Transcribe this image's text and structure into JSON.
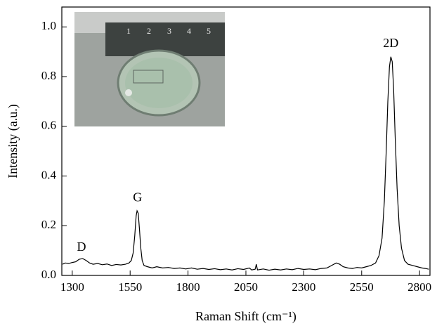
{
  "chart_data": {
    "type": "line",
    "x_label": "Raman Shift (cm⁻¹)",
    "y_label": "Intensity (a.u.)",
    "xlim": [
      1255,
      2845
    ],
    "ylim": [
      0,
      1.08
    ],
    "xticks": [
      1300,
      1550,
      1800,
      2050,
      2300,
      2550,
      2800
    ],
    "yticks": [
      {
        "value": 0,
        "label": "0.0"
      },
      0.2,
      0.4,
      0.6,
      0.8,
      {
        "value": 1,
        "label": "1.0"
      }
    ],
    "grid": false,
    "series": [
      {
        "color": "#000000",
        "x": [
          1258,
          1270,
          1285,
          1300,
          1315,
          1330,
          1345,
          1360,
          1375,
          1390,
          1410,
          1430,
          1450,
          1470,
          1490,
          1510,
          1530,
          1545,
          1555,
          1563,
          1570,
          1576,
          1580,
          1585,
          1590,
          1596,
          1602,
          1610,
          1625,
          1645,
          1665,
          1690,
          1715,
          1740,
          1765,
          1790,
          1815,
          1840,
          1865,
          1890,
          1915,
          1940,
          1965,
          1990,
          2015,
          2040,
          2065,
          2075,
          2090,
          2095,
          2100,
          2125,
          2150,
          2175,
          2200,
          2225,
          2250,
          2275,
          2300,
          2325,
          2350,
          2375,
          2400,
          2420,
          2440,
          2455,
          2470,
          2490,
          2510,
          2530,
          2550,
          2570,
          2590,
          2610,
          2625,
          2638,
          2648,
          2656,
          2663,
          2670,
          2676,
          2682,
          2688,
          2695,
          2703,
          2712,
          2722,
          2735,
          2750,
          2770,
          2790,
          2810,
          2825,
          2840
        ],
        "values": [
          0.045,
          0.05,
          0.048,
          0.052,
          0.055,
          0.065,
          0.068,
          0.06,
          0.05,
          0.045,
          0.048,
          0.043,
          0.046,
          0.04,
          0.044,
          0.042,
          0.045,
          0.05,
          0.06,
          0.09,
          0.16,
          0.24,
          0.26,
          0.25,
          0.19,
          0.11,
          0.06,
          0.04,
          0.035,
          0.03,
          0.035,
          0.03,
          0.032,
          0.028,
          0.03,
          0.026,
          0.03,
          0.025,
          0.028,
          0.024,
          0.027,
          0.023,
          0.026,
          0.022,
          0.027,
          0.024,
          0.03,
          0.022,
          0.025,
          0.045,
          0.022,
          0.026,
          0.021,
          0.025,
          0.022,
          0.026,
          0.023,
          0.028,
          0.024,
          0.026,
          0.023,
          0.028,
          0.03,
          0.04,
          0.05,
          0.045,
          0.035,
          0.03,
          0.028,
          0.032,
          0.03,
          0.035,
          0.04,
          0.05,
          0.08,
          0.15,
          0.3,
          0.5,
          0.7,
          0.84,
          0.88,
          0.86,
          0.75,
          0.55,
          0.35,
          0.2,
          0.11,
          0.06,
          0.045,
          0.04,
          0.035,
          0.03,
          0.028,
          0.025
        ]
      }
    ],
    "annotations": [
      {
        "text": "D",
        "x": 1340,
        "y": 0.11
      },
      {
        "text": "G",
        "x": 1582,
        "y": 0.31
      },
      {
        "text": "2D",
        "x": 2676,
        "y": 0.93
      }
    ],
    "inset_ruler_labels": [
      "1",
      "2",
      "3",
      "4",
      "5"
    ]
  }
}
